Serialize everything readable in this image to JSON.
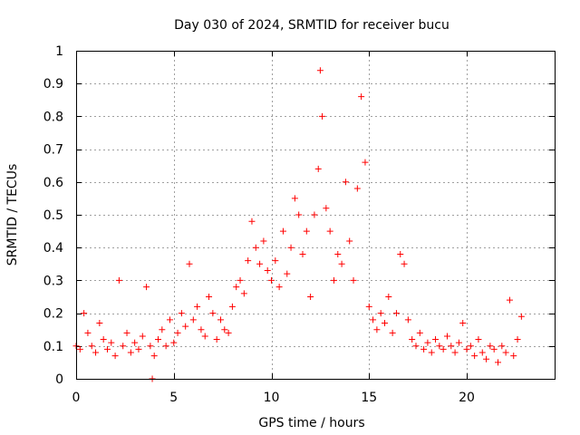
{
  "chart_data": {
    "type": "scatter",
    "title": "Day 030 of 2024, SRMTID for receiver bucu",
    "xlabel": "GPS time / hours",
    "ylabel": "SRMTID / TECUs",
    "xlim": [
      0,
      24.5
    ],
    "ylim": [
      0,
      1
    ],
    "xticks": [
      0,
      5,
      10,
      15,
      20
    ],
    "xtick_labels": [
      "0",
      "5",
      "10",
      "15",
      "20"
    ],
    "yticks": [
      0,
      0.1,
      0.2,
      0.3,
      0.4,
      0.5,
      0.6,
      0.7,
      0.8,
      0.9,
      1
    ],
    "ytick_labels": [
      "0",
      "0.1",
      "0.2",
      "0.3",
      "0.4",
      "0.5",
      "0.6",
      "0.7",
      "0.8",
      "0.9",
      "1"
    ],
    "grid": true,
    "marker": "+",
    "color": "#ff0000",
    "series": [
      {
        "name": "SRMTID",
        "x": [
          0.0,
          0.2,
          0.4,
          0.6,
          0.8,
          1.0,
          1.2,
          1.4,
          1.6,
          1.8,
          2.0,
          2.2,
          2.4,
          2.6,
          2.8,
          3.0,
          3.2,
          3.4,
          3.6,
          3.8,
          3.9,
          4.0,
          4.2,
          4.4,
          4.6,
          4.8,
          5.0,
          5.2,
          5.4,
          5.6,
          5.8,
          6.0,
          6.2,
          6.4,
          6.6,
          6.8,
          7.0,
          7.2,
          7.4,
          7.6,
          7.8,
          8.0,
          8.2,
          8.4,
          8.6,
          8.8,
          9.0,
          9.2,
          9.4,
          9.6,
          9.8,
          10.0,
          10.2,
          10.4,
          10.6,
          10.8,
          11.0,
          11.2,
          11.4,
          11.6,
          11.8,
          12.0,
          12.2,
          12.4,
          12.5,
          12.6,
          12.8,
          13.0,
          13.2,
          13.4,
          13.6,
          13.8,
          14.0,
          14.2,
          14.4,
          14.6,
          14.8,
          15.0,
          15.2,
          15.4,
          15.6,
          15.8,
          16.0,
          16.2,
          16.4,
          16.6,
          16.8,
          17.0,
          17.2,
          17.4,
          17.6,
          17.8,
          18.0,
          18.2,
          18.4,
          18.6,
          18.8,
          19.0,
          19.2,
          19.4,
          19.6,
          19.8,
          20.0,
          20.2,
          20.4,
          20.6,
          20.8,
          21.0,
          21.2,
          21.4,
          21.6,
          21.8,
          22.0,
          22.2,
          22.4,
          22.6,
          22.8
        ],
        "values": [
          0.1,
          0.09,
          0.2,
          0.14,
          0.1,
          0.08,
          0.17,
          0.12,
          0.09,
          0.11,
          0.07,
          0.3,
          0.1,
          0.14,
          0.08,
          0.11,
          0.09,
          0.13,
          0.28,
          0.1,
          0.0,
          0.07,
          0.12,
          0.15,
          0.1,
          0.18,
          0.11,
          0.14,
          0.2,
          0.16,
          0.35,
          0.18,
          0.22,
          0.15,
          0.13,
          0.25,
          0.2,
          0.12,
          0.18,
          0.15,
          0.14,
          0.22,
          0.28,
          0.3,
          0.26,
          0.36,
          0.48,
          0.4,
          0.35,
          0.42,
          0.33,
          0.3,
          0.36,
          0.28,
          0.45,
          0.32,
          0.4,
          0.55,
          0.5,
          0.38,
          0.45,
          0.25,
          0.5,
          0.64,
          0.94,
          0.8,
          0.52,
          0.45,
          0.3,
          0.38,
          0.35,
          0.6,
          0.42,
          0.3,
          0.58,
          0.86,
          0.66,
          0.22,
          0.18,
          0.15,
          0.2,
          0.17,
          0.25,
          0.14,
          0.2,
          0.38,
          0.35,
          0.18,
          0.12,
          0.1,
          0.14,
          0.09,
          0.11,
          0.08,
          0.12,
          0.1,
          0.09,
          0.13,
          0.1,
          0.08,
          0.11,
          0.17,
          0.09,
          0.1,
          0.07,
          0.12,
          0.08,
          0.06,
          0.1,
          0.09,
          0.05,
          0.1,
          0.08,
          0.24,
          0.07,
          0.12,
          0.19
        ]
      }
    ]
  }
}
